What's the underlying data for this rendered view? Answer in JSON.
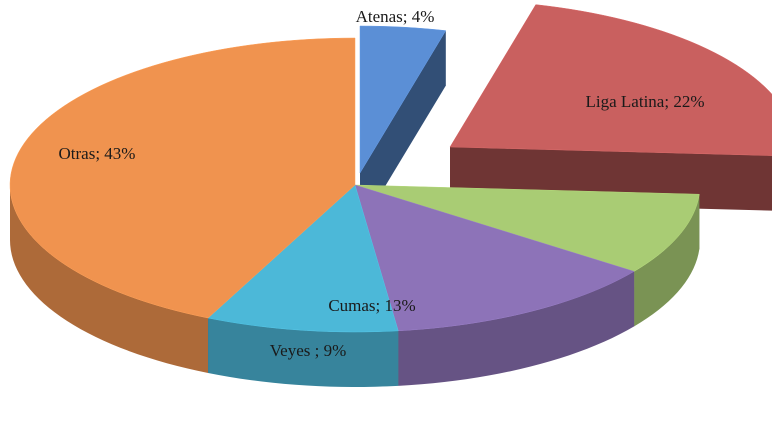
{
  "chart_data": {
    "type": "pie3d",
    "values": [
      4,
      22,
      9,
      13,
      9,
      43
    ],
    "value_labels": [
      "Atenas; 4%",
      "Liga Latina; 22%",
      null,
      "Cumas; 13%",
      "Veyes ; 9%",
      "Otras; 43%"
    ],
    "colors": [
      "#5b8fd6",
      "#c9605f",
      "#a9cc74",
      "#8d73b8",
      "#4cb8d8",
      "#f0934f"
    ]
  }
}
